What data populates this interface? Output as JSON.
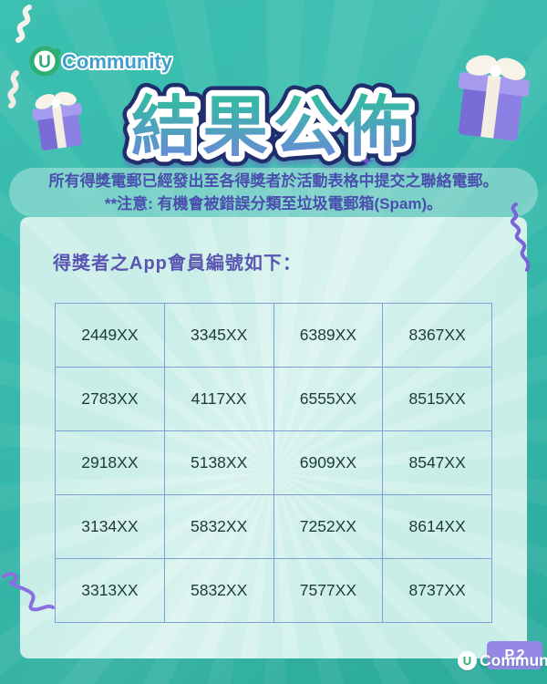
{
  "brand": {
    "u": "U",
    "community": "Community"
  },
  "title": "結果公佈",
  "notice": {
    "line1": "所有得獎電郵已經發出至各得獎者於活動表格中提交之聯絡電郵。",
    "line2": "**注意: 有機會被錯誤分類至垃圾電郵箱(Spam)。"
  },
  "card": {
    "heading": "得獎者之App會員編號如下：",
    "table": {
      "rows": [
        [
          "2449XX",
          "3345XX",
          "6389XX",
          "8367XX"
        ],
        [
          "2783XX",
          "4117XX",
          "6555XX",
          "8515XX"
        ],
        [
          "2918XX",
          "5138XX",
          "6909XX",
          "8547XX"
        ],
        [
          "3134XX",
          "5832XX",
          "7252XX",
          "8614XX"
        ],
        [
          "3313XX",
          "5832XX",
          "7577XX",
          "8737XX"
        ]
      ]
    }
  },
  "footer": {
    "page": "P.2",
    "brand_u": "U",
    "brand_community": "Community"
  },
  "icons": {
    "gift_left": "gift-box-purple",
    "gift_right": "gift-box-purple",
    "streamer_top_left": "white-ribbon-streamer",
    "confetti_card_right": "purple-ribbon-streamer",
    "confetti_card_left": "purple-ribbon-streamer"
  },
  "colors": {
    "background_teal": "#35b7a9",
    "card_mint": "#c8eee7",
    "notice_text_purple": "#4a4fae",
    "heading_purple": "#5b55b2",
    "table_border_blue": "#7e9fd8",
    "table_text_dark": "#1c3a3a",
    "title_gradient_top": "#2fbf9d",
    "title_gradient_bottom": "#6d87dc",
    "title_outline_navy": "#202e6e",
    "badge_purple": "#9488e4",
    "logo_green": "#2fae72",
    "logo_blue": "#3f9fcb"
  }
}
